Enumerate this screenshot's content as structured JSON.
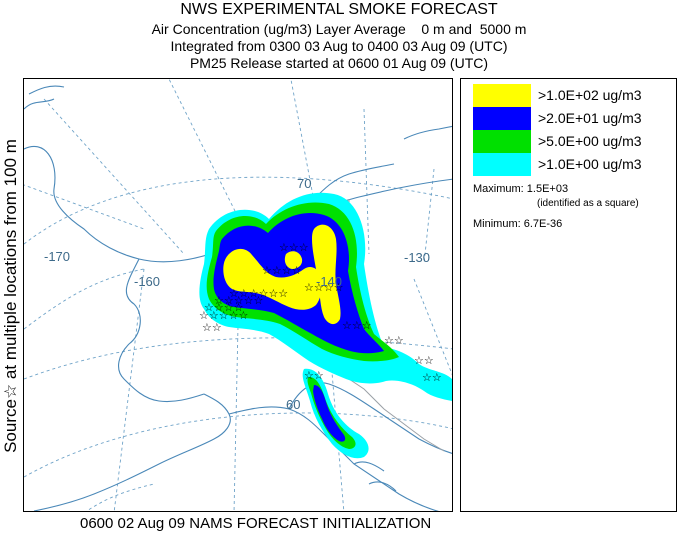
{
  "titles": {
    "line1": "NWS EXPERIMENTAL SMOKE FORECAST",
    "line2": "Air Concentration (ug/m3) Layer Average    0 m and  5000 m",
    "line3": "Integrated from 0300 03 Aug to 0400 03 Aug 09 (UTC)",
    "line4": "PM25 Release started at 0600 01 Aug 09 (UTC)"
  },
  "side_label": "Source☆ at multiple locations from  100 m",
  "footer": "0600 02 Aug 09 NAMS FORECAST INITIALIZATION",
  "legend": {
    "items": [
      {
        "label": ">1.0E+02 ug/m3",
        "color": "#ffff00"
      },
      {
        "label": ">2.0E+01 ug/m3",
        "color": "#0000ff"
      },
      {
        "label": ">5.0E+00 ug/m3",
        "color": "#00e000"
      },
      {
        "label": ">1.0E+00 ug/m3",
        "color": "#00ffff"
      }
    ],
    "maximum": "Maximum: 1.5E+03",
    "maximum_note": "(identified as a square)",
    "minimum": "Minimum: 6.7E-36"
  },
  "map": {
    "graticule_labels": [
      "-170",
      "-160",
      "-140",
      "-130",
      "70",
      "60"
    ],
    "colors": {
      "coast": "#4a88b8",
      "grid": "#6fa3c8",
      "border": "#9aa0a6",
      "level1": "#00ffff",
      "level2": "#00e000",
      "level3": "#0000ff",
      "level4": "#ffff00"
    }
  }
}
